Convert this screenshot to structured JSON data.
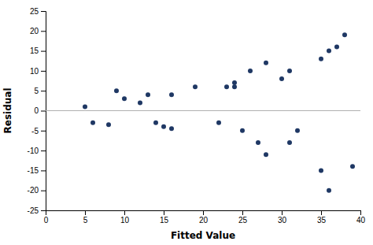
{
  "chart_data": {
    "type": "scatter",
    "x_label": "Fitted Value",
    "y_label": "Residual",
    "x": [
      5,
      6,
      8,
      9,
      10,
      12,
      13,
      14,
      15,
      16,
      16,
      19,
      22,
      23,
      24,
      24,
      25,
      26,
      27,
      28,
      28,
      30,
      31,
      31,
      32,
      35,
      35,
      36,
      36,
      37,
      38,
      39
    ],
    "values": [
      1,
      -3,
      -3.5,
      5,
      3,
      2,
      4,
      -3,
      -4,
      4,
      -4.5,
      6,
      -3,
      6,
      7,
      6,
      -5,
      10,
      -8,
      12,
      -11,
      8,
      -8,
      10,
      -5,
      -15,
      13,
      15,
      -20,
      16,
      19,
      -14
    ],
    "color": "#1f3864",
    "reference_line": {
      "y": 0,
      "color": "#b0b0b0"
    },
    "xlim": [
      0,
      40
    ],
    "ylim": [
      -25,
      25
    ],
    "xticks": [
      0,
      5,
      10,
      15,
      20,
      25,
      30,
      35,
      40
    ],
    "yticks": [
      -25,
      -20,
      -15,
      -10,
      -5,
      0,
      5,
      10,
      15,
      20,
      25
    ],
    "grid": false
  }
}
